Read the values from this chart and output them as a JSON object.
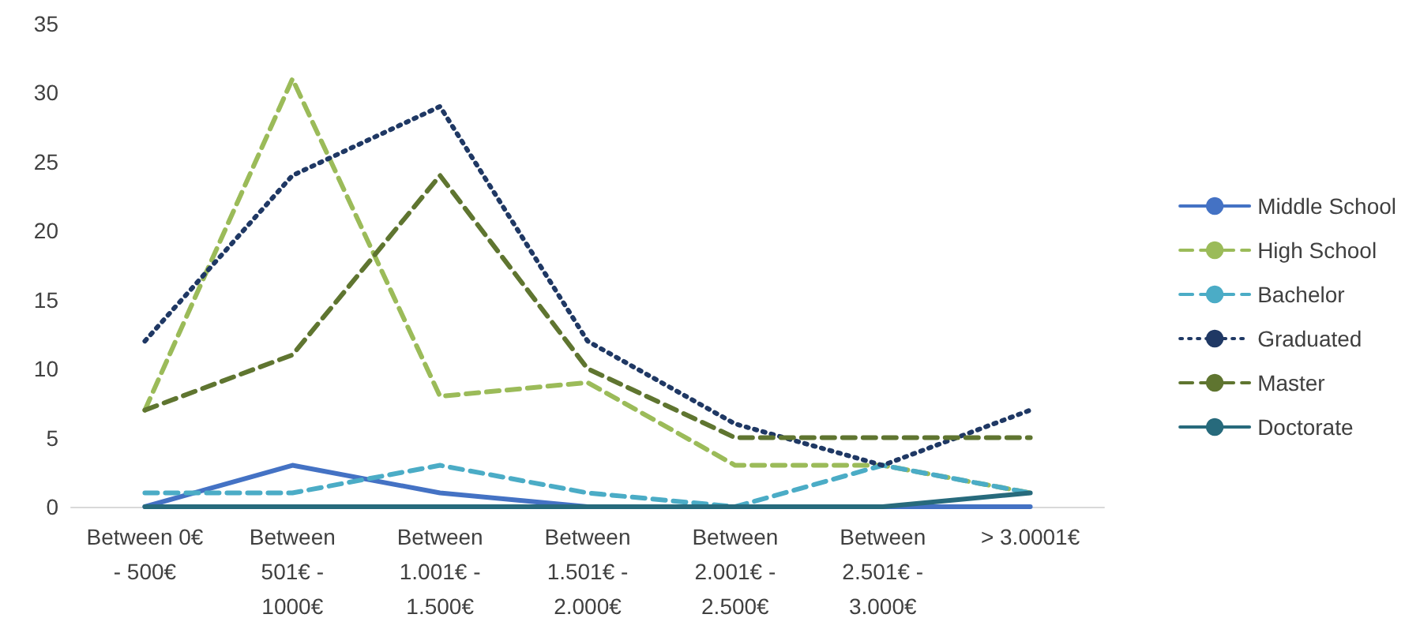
{
  "chart_data": {
    "type": "line",
    "categories": [
      "Between 0€ - 500€",
      "Between 501€ - 1000€",
      "Between 1.001€ - 1.500€",
      "Between 1.501€ - 2.000€",
      "Between 2.001€ - 2.500€",
      "Between 2.501€ - 3.000€",
      "> 3.0001€"
    ],
    "series": [
      {
        "name": "Middle School",
        "color": "#4472c4",
        "line_style": "solid",
        "values": [
          0,
          3,
          1,
          0,
          0,
          0,
          0
        ]
      },
      {
        "name": "High School",
        "color": "#9bbb59",
        "line_style": "dashed",
        "values": [
          7,
          31,
          8,
          9,
          3,
          3,
          1
        ]
      },
      {
        "name": "Bachelor",
        "color": "#4bacc6",
        "line_style": "dashed",
        "values": [
          1,
          1,
          3,
          1,
          0,
          3,
          1
        ]
      },
      {
        "name": "Graduated",
        "color": "#1f3864",
        "line_style": "dotted",
        "values": [
          12,
          24,
          29,
          12,
          6,
          3,
          7
        ]
      },
      {
        "name": "Master",
        "color": "#5f7530",
        "line_style": "dashed",
        "values": [
          7,
          11,
          24,
          10,
          5,
          5,
          5
        ]
      },
      {
        "name": "Doctorate",
        "color": "#276a7c",
        "line_style": "solid",
        "values": [
          0,
          0,
          0,
          0,
          0,
          0,
          1
        ]
      }
    ],
    "ylim": [
      0,
      35
    ],
    "yticks": [
      0,
      5,
      10,
      15,
      20,
      25,
      30,
      35
    ],
    "grid": false,
    "legend": "right",
    "marker": "none"
  }
}
